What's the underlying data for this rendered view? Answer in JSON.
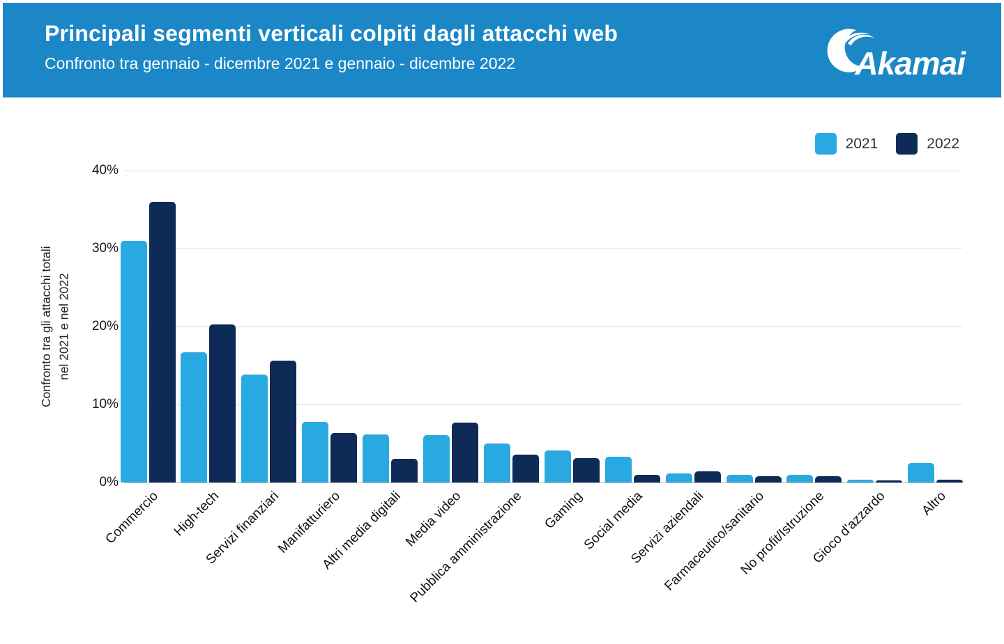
{
  "header": {
    "title": "Principali segmenti verticali colpiti dagli attacchi web",
    "subtitle": "Confronto tra gennaio - dicembre 2021 e gennaio - dicembre 2022",
    "logo_text": "Akamai",
    "banner_color": "#1b87c7"
  },
  "chart_data": {
    "type": "bar",
    "title": "Principali segmenti verticali colpiti dagli attacchi web",
    "subtitle": "Confronto tra gennaio - dicembre 2021 e gennaio - dicembre 2022",
    "categories": [
      "Commercio",
      "High-tech",
      "Servizi finanziari",
      "Manifatturiero",
      "Altri media digitali",
      "Media video",
      "Pubblica amministrazione",
      "Gaming",
      "Social media",
      "Servizi aziendali",
      "Farmaceutico/sanitario",
      "No profit/Istruzione",
      "Gioco d'azzardo",
      "Altro"
    ],
    "series": [
      {
        "name": "2021",
        "color": "#29a9e1",
        "values": [
          31,
          16.7,
          13.8,
          7.8,
          6.2,
          6.1,
          5.0,
          4.1,
          3.3,
          1.2,
          1.0,
          1.0,
          0.4,
          2.5
        ]
      },
      {
        "name": "2022",
        "color": "#0e2b57",
        "values": [
          36,
          20.3,
          15.6,
          6.3,
          3.0,
          7.7,
          3.6,
          3.1,
          1.0,
          1.4,
          0.8,
          0.8,
          0.3,
          0.4
        ]
      }
    ],
    "xlabel": "",
    "ylabel": "Confronto tra gli attacchi totali\nnel 2021 e nel 2022",
    "ylim": [
      0,
      40
    ],
    "ytick_values": [
      0,
      10,
      20,
      30,
      40
    ],
    "ytick_labels": [
      "0%",
      "10%",
      "20%",
      "30%",
      "40%"
    ],
    "grid": true,
    "legend_position": "top-right"
  }
}
